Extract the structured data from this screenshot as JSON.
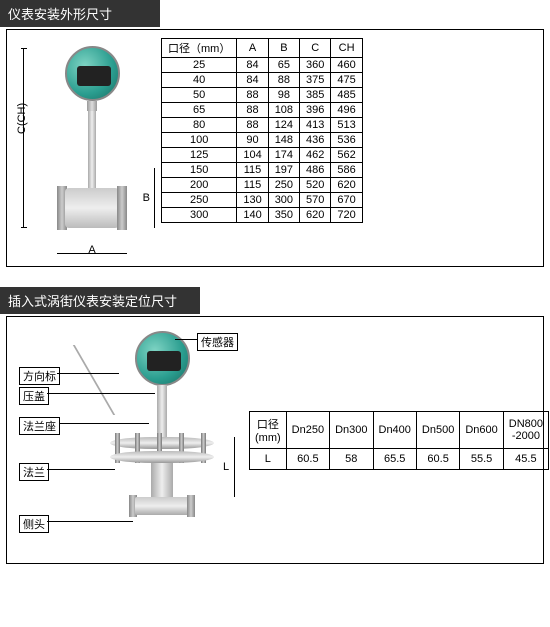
{
  "section1": {
    "title": "仪表安装外形尺寸",
    "dims": {
      "C": "C(CH)",
      "B": "B",
      "A": "A"
    },
    "table": {
      "headers": [
        "口径（mm）",
        "A",
        "B",
        "C",
        "CH"
      ],
      "rows": [
        [
          "25",
          "84",
          "65",
          "360",
          "460"
        ],
        [
          "40",
          "84",
          "88",
          "375",
          "475"
        ],
        [
          "50",
          "88",
          "98",
          "385",
          "485"
        ],
        [
          "65",
          "88",
          "108",
          "396",
          "496"
        ],
        [
          "80",
          "88",
          "124",
          "413",
          "513"
        ],
        [
          "100",
          "90",
          "148",
          "436",
          "536"
        ],
        [
          "125",
          "104",
          "174",
          "462",
          "562"
        ],
        [
          "150",
          "115",
          "197",
          "486",
          "586"
        ],
        [
          "200",
          "115",
          "250",
          "520",
          "620"
        ],
        [
          "250",
          "130",
          "300",
          "570",
          "670"
        ],
        [
          "300",
          "140",
          "350",
          "620",
          "720"
        ]
      ]
    }
  },
  "section2": {
    "title": "插入式涡街仪表安装定位尺寸",
    "callouts": {
      "sensor": "传感器",
      "direction": "方向标",
      "cap": "压盖",
      "flange_seat": "法兰座",
      "flange": "法兰",
      "side_head": "侧头"
    },
    "dim_L": "L",
    "table": {
      "header_label": "口径\n(mm)",
      "row_label": "L",
      "cols": [
        "Dn250",
        "Dn300",
        "Dn400",
        "Dn500",
        "Dn600",
        "DN800\n-2000"
      ],
      "values": [
        "60.5",
        "58",
        "65.5",
        "60.5",
        "55.5",
        "45.5"
      ]
    }
  }
}
